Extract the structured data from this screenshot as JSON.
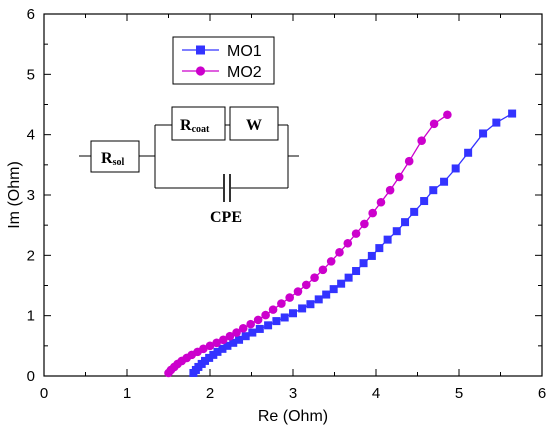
{
  "chart_data": {
    "type": "line",
    "xlabel": "Re (Ohm)",
    "ylabel": "Im (Ohm)",
    "xlim": [
      0,
      6
    ],
    "ylim": [
      0,
      6
    ],
    "xticks": [
      "0",
      "1",
      "2",
      "3",
      "4",
      "5",
      "6"
    ],
    "yticks": [
      "0",
      "1",
      "2",
      "3",
      "4",
      "5",
      "6"
    ],
    "legend_position": "top-left",
    "series": [
      {
        "name": "MO1",
        "color": "#3333ff",
        "marker": "square",
        "points": [
          [
            1.8,
            0.05
          ],
          [
            1.83,
            0.1
          ],
          [
            1.86,
            0.15
          ],
          [
            1.9,
            0.2
          ],
          [
            1.94,
            0.25
          ],
          [
            1.99,
            0.3
          ],
          [
            2.04,
            0.35
          ],
          [
            2.09,
            0.4
          ],
          [
            2.15,
            0.45
          ],
          [
            2.21,
            0.5
          ],
          [
            2.28,
            0.55
          ],
          [
            2.35,
            0.6
          ],
          [
            2.43,
            0.66
          ],
          [
            2.51,
            0.72
          ],
          [
            2.6,
            0.78
          ],
          [
            2.7,
            0.84
          ],
          [
            2.8,
            0.91
          ],
          [
            2.9,
            0.97
          ],
          [
            3.0,
            1.04
          ],
          [
            3.11,
            1.12
          ],
          [
            3.21,
            1.19
          ],
          [
            3.31,
            1.27
          ],
          [
            3.4,
            1.35
          ],
          [
            3.49,
            1.44
          ],
          [
            3.58,
            1.53
          ],
          [
            3.67,
            1.63
          ],
          [
            3.76,
            1.74
          ],
          [
            3.85,
            1.87
          ],
          [
            3.95,
            1.99
          ],
          [
            4.04,
            2.12
          ],
          [
            4.14,
            2.26
          ],
          [
            4.25,
            2.4
          ],
          [
            4.35,
            2.55
          ],
          [
            4.46,
            2.72
          ],
          [
            4.58,
            2.9
          ],
          [
            4.69,
            3.08
          ],
          [
            4.82,
            3.22
          ],
          [
            4.96,
            3.44
          ],
          [
            5.11,
            3.7
          ],
          [
            5.29,
            4.02
          ],
          [
            5.45,
            4.2
          ],
          [
            5.64,
            4.35
          ]
        ]
      },
      {
        "name": "MO2",
        "color": "#cc00cc",
        "marker": "circle",
        "points": [
          [
            1.5,
            0.05
          ],
          [
            1.53,
            0.1
          ],
          [
            1.57,
            0.15
          ],
          [
            1.61,
            0.2
          ],
          [
            1.66,
            0.25
          ],
          [
            1.72,
            0.3
          ],
          [
            1.78,
            0.35
          ],
          [
            1.85,
            0.4
          ],
          [
            1.92,
            0.45
          ],
          [
            2.0,
            0.5
          ],
          [
            2.08,
            0.55
          ],
          [
            2.16,
            0.6
          ],
          [
            2.24,
            0.66
          ],
          [
            2.32,
            0.72
          ],
          [
            2.4,
            0.79
          ],
          [
            2.49,
            0.86
          ],
          [
            2.58,
            0.93
          ],
          [
            2.67,
            1.01
          ],
          [
            2.76,
            1.1
          ],
          [
            2.86,
            1.2
          ],
          [
            2.96,
            1.3
          ],
          [
            3.06,
            1.4
          ],
          [
            3.16,
            1.51
          ],
          [
            3.26,
            1.63
          ],
          [
            3.36,
            1.76
          ],
          [
            3.46,
            1.9
          ],
          [
            3.56,
            2.05
          ],
          [
            3.66,
            2.2
          ],
          [
            3.76,
            2.36
          ],
          [
            3.86,
            2.52
          ],
          [
            3.96,
            2.7
          ],
          [
            4.06,
            2.88
          ],
          [
            4.17,
            3.08
          ],
          [
            4.28,
            3.3
          ],
          [
            4.4,
            3.56
          ],
          [
            4.55,
            3.9
          ],
          [
            4.7,
            4.18
          ],
          [
            4.86,
            4.33
          ]
        ]
      }
    ]
  },
  "circuit": {
    "r_sol_main": "R",
    "r_sol_sub": "sol",
    "r_coat_main": "R",
    "r_coat_sub": "coat",
    "w_label": "W",
    "cpe_label": "CPE"
  }
}
